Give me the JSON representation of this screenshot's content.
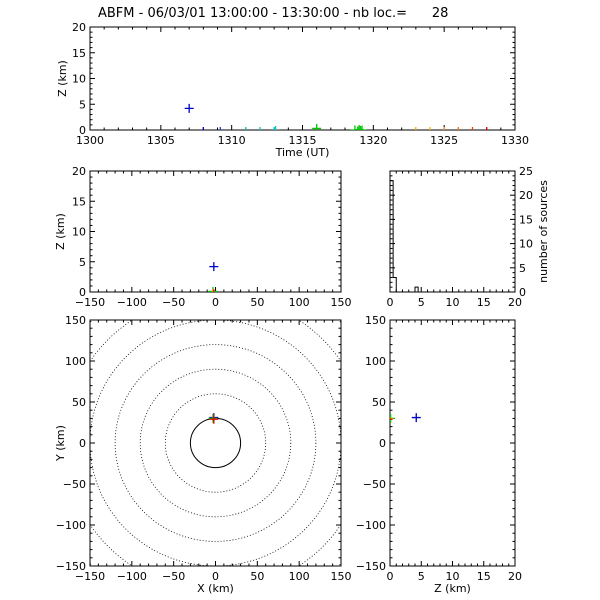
{
  "title": "ABFM - 06/03/01 13:00:00 - 13:30:00 - nb loc.=      28",
  "chart_data": [
    {
      "id": "time-height",
      "type": "scatter",
      "xlabel": "Time (UT)",
      "ylabel": "Z (km)",
      "xlim": [
        1300,
        1330
      ],
      "ylim": [
        0,
        20
      ],
      "xticks": [
        "1300",
        "1305",
        "1310",
        "1315",
        "1320",
        "1325",
        "1330"
      ],
      "yticks": [
        "0",
        "5",
        "10",
        "15",
        "20"
      ],
      "points": [
        {
          "x": 1307.0,
          "y": 4.2,
          "color": "#0000cc"
        },
        {
          "x": 1308.0,
          "y": -0.3,
          "color": "#0000cc"
        },
        {
          "x": 1309.2,
          "y": -0.3,
          "color": "#1a3cff"
        },
        {
          "x": 1311.0,
          "y": -0.3,
          "color": "#00c8c8"
        },
        {
          "x": 1312.0,
          "y": -0.3,
          "color": "#00c8c8"
        },
        {
          "x": 1313.0,
          "y": -0.3,
          "color": "#00c8c8"
        },
        {
          "x": 1313.1,
          "y": -0.1,
          "color": "#00c8c8"
        },
        {
          "x": 1316.0,
          "y": 0.3,
          "color": "#00c800"
        },
        {
          "x": 1318.7,
          "y": 0.0,
          "color": "#00c800"
        },
        {
          "x": 1318.9,
          "y": -0.2,
          "color": "#00c800"
        },
        {
          "x": 1319.0,
          "y": 0.1,
          "color": "#00c800"
        },
        {
          "x": 1319.1,
          "y": -0.1,
          "color": "#00c800"
        },
        {
          "x": 1319.2,
          "y": 0.0,
          "color": "#00c800"
        },
        {
          "x": 1323.0,
          "y": -0.3,
          "color": "#ffb400"
        },
        {
          "x": 1324.0,
          "y": -0.3,
          "color": "#ffb400"
        },
        {
          "x": 1325.0,
          "y": -0.3,
          "color": "#ff9600"
        },
        {
          "x": 1326.0,
          "y": -0.3,
          "color": "#ff7800"
        },
        {
          "x": 1327.0,
          "y": -0.3,
          "color": "#ff3c00"
        },
        {
          "x": 1328.0,
          "y": -0.3,
          "color": "#e60000"
        }
      ]
    },
    {
      "id": "x-height",
      "type": "scatter",
      "xlabel": "",
      "ylabel": "Z (km)",
      "xlim": [
        -150,
        150
      ],
      "ylim": [
        0,
        20
      ],
      "xticks": [
        "−150",
        "−100",
        "−50",
        "0",
        "50",
        "100",
        "150"
      ],
      "yticks": [
        "0",
        "5",
        "10",
        "15",
        "20"
      ],
      "points": [
        {
          "x": -2,
          "y": 4.2,
          "color": "#0000cc"
        },
        {
          "x": -3,
          "y": 0.1,
          "color": "#00c800"
        },
        {
          "x": -3,
          "y": -0.2,
          "color": "#ff9600"
        },
        {
          "x": -2,
          "y": -0.3,
          "color": "#e60000"
        }
      ]
    },
    {
      "id": "height-histogram",
      "type": "histogram",
      "xlabel": "",
      "ylabel": "number of sources",
      "xlim": [
        0,
        20
      ],
      "ylim": [
        0,
        25
      ],
      "xticks": [
        "0",
        "5",
        "10",
        "15",
        "20"
      ],
      "yticks": [
        "0",
        "5",
        "10",
        "15",
        "20",
        "25"
      ],
      "bin_width": 0.5,
      "counts": [
        23,
        3,
        0,
        0,
        0,
        0,
        0,
        0,
        1,
        0,
        0,
        0,
        0,
        0,
        0,
        0,
        0,
        0,
        0,
        0,
        0,
        0,
        0,
        0,
        0,
        0,
        0,
        0,
        0,
        0,
        0,
        0,
        0,
        0,
        0,
        0,
        0,
        0,
        0,
        0
      ]
    },
    {
      "id": "plan-view",
      "type": "scatter",
      "xlabel": "X (km)",
      "ylabel": "Y (km)",
      "xlim": [
        -150,
        150
      ],
      "ylim": [
        -150,
        150
      ],
      "xticks": [
        "−150",
        "−100",
        "−50",
        "0",
        "50",
        "100",
        "150"
      ],
      "yticks": [
        "−150",
        "−100",
        "−50",
        "0",
        "50",
        "100",
        "150"
      ],
      "range_rings_km": [
        30,
        60,
        90,
        120,
        150,
        180,
        210
      ],
      "points": [
        {
          "x": -2,
          "y": 31,
          "color": "#0000cc"
        },
        {
          "x": -3,
          "y": 30,
          "color": "#00c800"
        },
        {
          "x": -2,
          "y": 29,
          "color": "#e60000"
        }
      ]
    },
    {
      "id": "height-y",
      "type": "scatter",
      "xlabel": "Z (km)",
      "ylabel": "",
      "xlim": [
        0,
        20
      ],
      "ylim": [
        -150,
        150
      ],
      "xticks": [
        "0",
        "5",
        "10",
        "15",
        "20"
      ],
      "yticks": [
        "−150",
        "−100",
        "−50",
        "0",
        "50",
        "100",
        "150"
      ],
      "points": [
        {
          "x": 4.2,
          "y": 31,
          "color": "#0000cc"
        },
        {
          "x": 0.1,
          "y": 30,
          "color": "#00c800"
        },
        {
          "x": -0.2,
          "y": 30,
          "color": "#ff9600"
        },
        {
          "x": -0.3,
          "y": 29,
          "color": "#e60000"
        }
      ]
    }
  ]
}
